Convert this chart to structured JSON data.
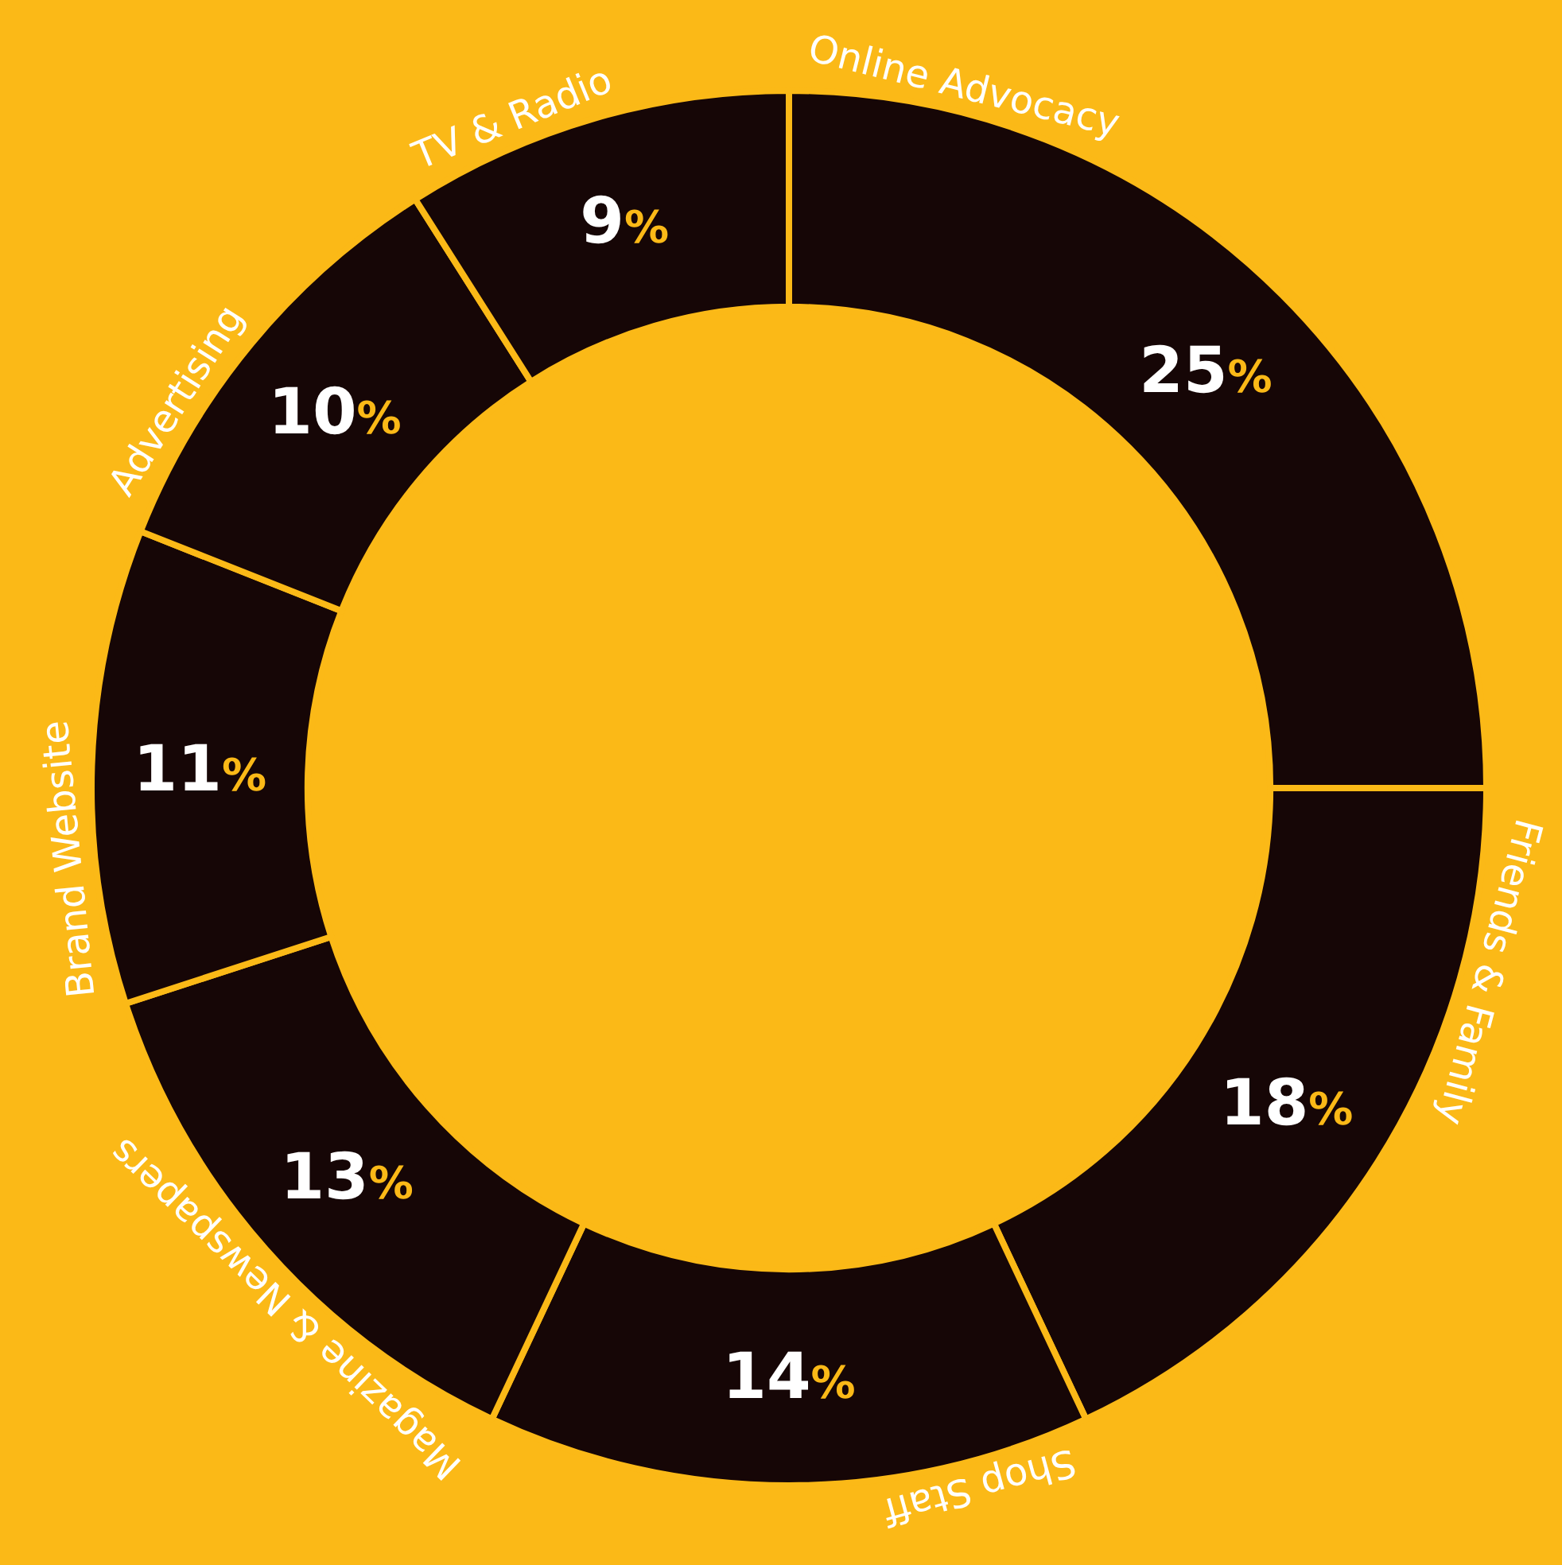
{
  "chart_data": {
    "type": "donut",
    "categories": [
      "Online Advocacy",
      "Friends & Family",
      "Shop Staff",
      "Magazine & Newspapers",
      "Brand Website",
      "Advertising",
      "TV & Radio"
    ],
    "values": [
      25,
      18,
      14,
      13,
      11,
      10,
      9
    ],
    "value_labels": [
      "25%",
      "18%",
      "14%",
      "13%",
      "11%",
      "10%",
      "9%"
    ],
    "colors": [
      "#160606",
      "#160606",
      "#160606",
      "#160606",
      "#160606",
      "#160606",
      "#160606"
    ],
    "legend": false
  }
}
